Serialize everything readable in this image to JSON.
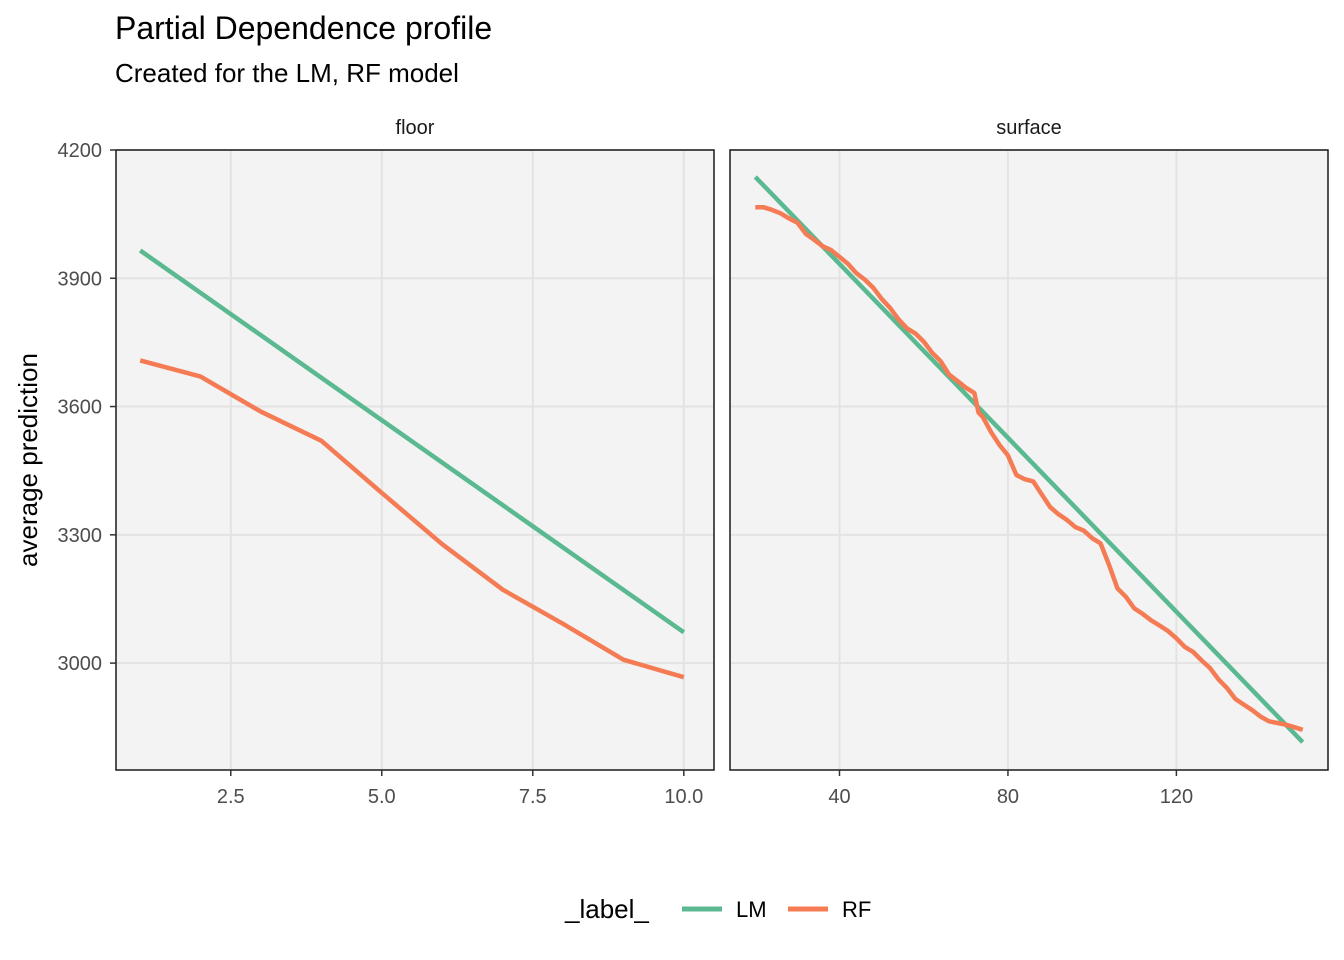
{
  "chart_data": {
    "type": "line",
    "title": "Partial Dependence profile",
    "subtitle": "Created for the LM, RF model",
    "ylabel": "average prediction",
    "ylim": [
      2750,
      4200
    ],
    "yticks": [
      3000,
      3300,
      3600,
      3900,
      4200
    ],
    "grid": true,
    "legend": {
      "title": "_label_",
      "position": "bottom",
      "items": [
        {
          "name": "LM",
          "color": "#5BB991"
        },
        {
          "name": "RF",
          "color": "#F47B54"
        }
      ]
    },
    "panels": [
      {
        "strip": "floor",
        "xlim": [
          0.6,
          10.5
        ],
        "xticks": [
          2.5,
          5.0,
          7.5,
          10.0
        ],
        "xtick_labels": [
          "2.5",
          "5.0",
          "7.5",
          "10.0"
        ],
        "series": [
          {
            "name": "LM",
            "x": [
              1,
              10
            ],
            "y": [
              3965,
              3072
            ]
          },
          {
            "name": "RF",
            "x": [
              1,
              2,
              3,
              4,
              5,
              6,
              7,
              8,
              9,
              10
            ],
            "y": [
              3708,
              3670,
              3588,
              3520,
              3398,
              3278,
              3172,
              3092,
              3008,
              2967
            ]
          }
        ]
      },
      {
        "strip": "surface",
        "xlim": [
          14,
          156
        ],
        "xticks": [
          40,
          80,
          120
        ],
        "xtick_labels": [
          "40",
          "80",
          "120"
        ],
        "series": [
          {
            "name": "LM",
            "x": [
              20,
              150
            ],
            "y": [
              4137,
              2815
            ]
          },
          {
            "name": "RF",
            "x": [
              20,
              22,
              24,
              26,
              28,
              30,
              32,
              34,
              36,
              38,
              40,
              42,
              44,
              46,
              48,
              50,
              52,
              54,
              56,
              58,
              60,
              62,
              64,
              66,
              68,
              70,
              72,
              73,
              74,
              76,
              78,
              80,
              82,
              84,
              86,
              88,
              90,
              92,
              94,
              96,
              98,
              100,
              102,
              104,
              106,
              108,
              110,
              112,
              114,
              116,
              118,
              120,
              122,
              124,
              126,
              128,
              130,
              132,
              134,
              136,
              138,
              140,
              142,
              144,
              146,
              148,
              150
            ],
            "y": [
              4066,
              4066,
              4060,
              4052,
              4040,
              4030,
              4004,
              3990,
              3975,
              3966,
              3950,
              3934,
              3912,
              3897,
              3878,
              3852,
              3831,
              3804,
              3783,
              3771,
              3752,
              3726,
              3706,
              3675,
              3660,
              3644,
              3632,
              3586,
              3576,
              3540,
              3510,
              3486,
              3440,
              3430,
              3425,
              3395,
              3365,
              3348,
              3335,
              3318,
              3310,
              3292,
              3280,
              3230,
              3175,
              3155,
              3128,
              3115,
              3100,
              3088,
              3075,
              3058,
              3038,
              3026,
              3006,
              2988,
              2962,
              2942,
              2916,
              2903,
              2890,
              2875,
              2864,
              2860,
              2856,
              2850,
              2844
            ]
          }
        ]
      }
    ]
  }
}
